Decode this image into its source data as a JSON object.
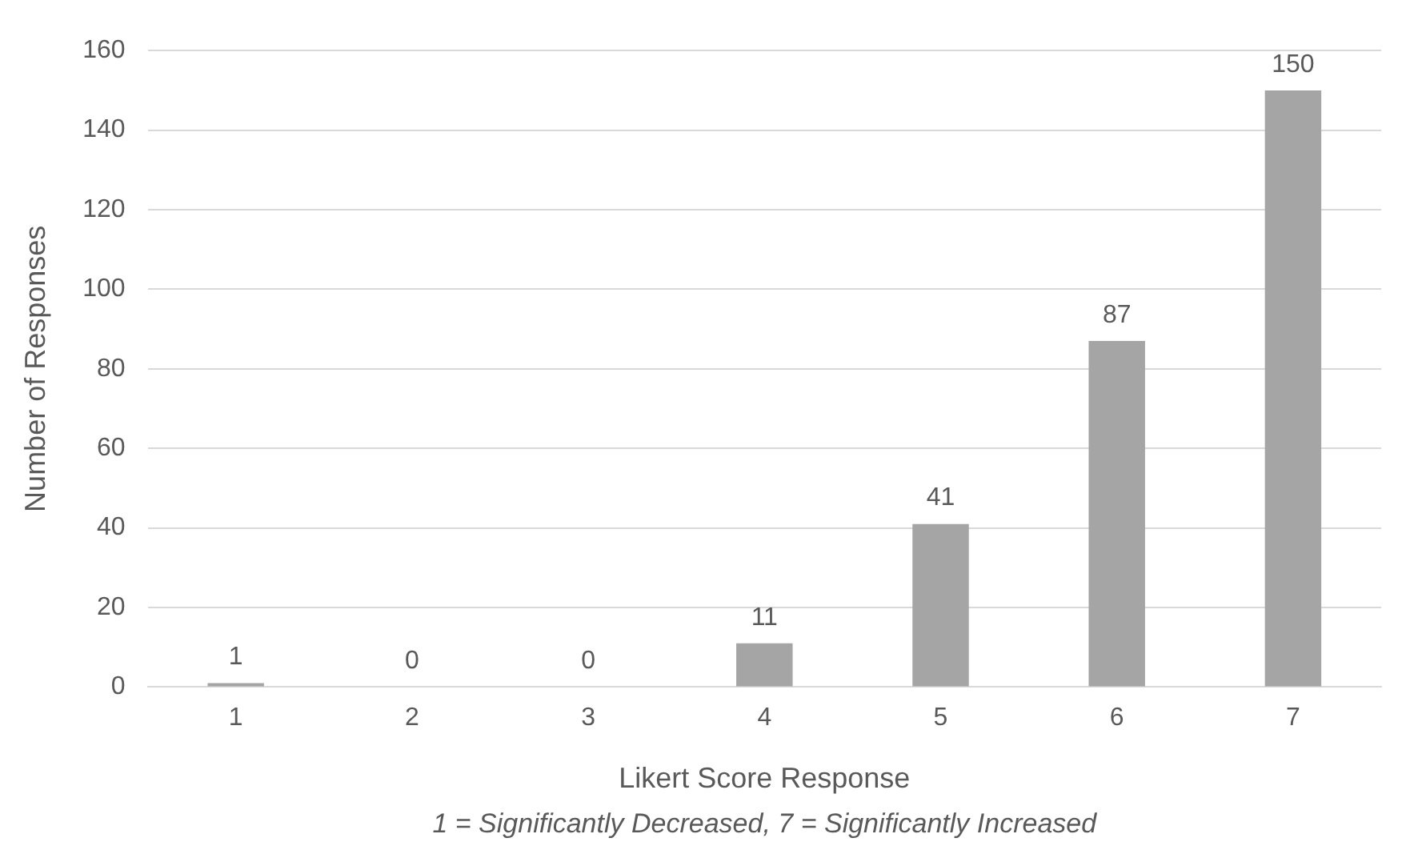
{
  "chart_data": {
    "type": "bar",
    "xlabel": "Likert Score Response",
    "ylabel": "Number of Responses",
    "annotations": [
      "1 = Significantly Decreased, 7 = Significantly Increased"
    ],
    "categories": [
      "1",
      "2",
      "3",
      "4",
      "5",
      "6",
      "7"
    ],
    "values": [
      1,
      0,
      0,
      11,
      41,
      87,
      150
    ],
    "color": "#a5a5a5",
    "ylim": [
      0,
      160
    ],
    "yticks": [
      0,
      20,
      40,
      60,
      80,
      100,
      120,
      140,
      160
    ],
    "grid": "y",
    "data_labels": true,
    "legend": false
  }
}
